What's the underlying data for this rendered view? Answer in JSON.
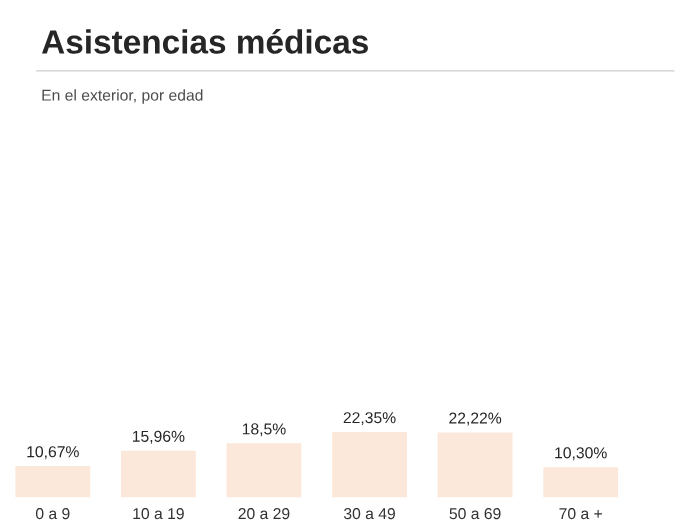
{
  "chart_data": {
    "type": "bar",
    "title": "Asistencias médicas",
    "subtitle": "En el exterior, por edad",
    "categories": [
      "0 a 9",
      "10 a 19",
      "20 a 29",
      "30 a 49",
      "50 a 69",
      "70 a +"
    ],
    "values": [
      10.67,
      15.96,
      18.5,
      22.35,
      22.22,
      10.3
    ],
    "value_labels": [
      "10,67%",
      "15,96%",
      "18,5%",
      "22,35%",
      "22,22%",
      "10,30%"
    ],
    "color": "#fbe8da"
  }
}
